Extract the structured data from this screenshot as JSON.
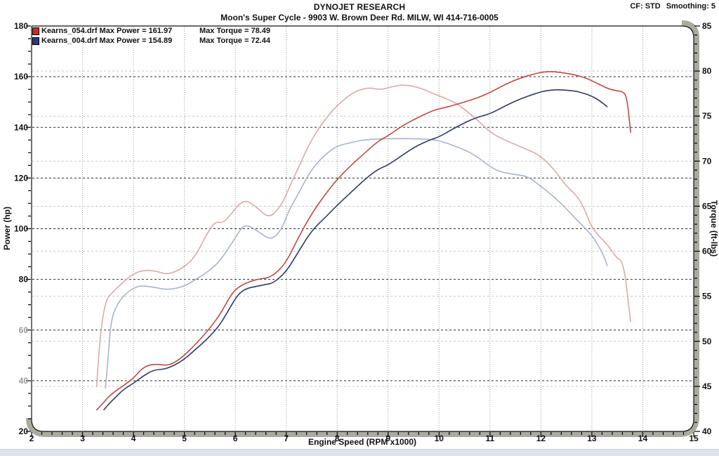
{
  "header": {
    "title": "DYNOJET RESEARCH",
    "subtitle": "Moon's Super Cycle - 9903 W. Brown Deer Rd. MILW, WI 414-716-0005",
    "cf_label": "CF: STD",
    "smoothing_label": "Smoothing: 5"
  },
  "legend": [
    {
      "file": "Kearns_054.drf",
      "power_label": " Max Power = 161.97",
      "torque_label": "Max Torque = 78.49",
      "swatch": "#cc2a26"
    },
    {
      "file": "Kearns_004.drf",
      "power_label": " Max Power = 154.89",
      "torque_label": "Max Torque = 72.44",
      "swatch": "#2c3a80"
    }
  ],
  "colors": {
    "power_grid": "#2b2b2b",
    "torque_grid": "#c9c9c9",
    "vline": "#9a9a9a",
    "frame_gray": "#aaaa9e",
    "axis_black": "#111111",
    "label": "#111111",
    "faded_label": "#9a9a9a",
    "red_power": "#bf4a43",
    "blue_power": "#303a62",
    "red_torque": "#dcaaa7",
    "blue_torque": "#aab3c9"
  },
  "chart_data": {
    "type": "line",
    "title": "DYNOJET RESEARCH",
    "xlabel": "Engine Speed (RPM x1000)",
    "ylabel_left": "Power (hp)",
    "ylabel_right": "Torque (ft-lbs)",
    "grid": true,
    "legend_position": "top-left",
    "x": {
      "min": 2,
      "max": 15,
      "major": 1,
      "minor": 0.2
    },
    "y_power": {
      "min": 20,
      "max": 180,
      "major": 20,
      "minor": 5,
      "grid_from": 40,
      "grid_to": 160,
      "faded_labels": [
        40,
        60
      ]
    },
    "y_torque": {
      "min": 40,
      "max": 85,
      "major": 5,
      "minor": 1,
      "grid_from": 45,
      "grid_to": 80
    },
    "series": [
      {
        "name": "Kearns_054.drf Power",
        "axis": "power",
        "color_key": "red_power",
        "max": 161.97,
        "points": [
          [
            3.28,
            28.5
          ],
          [
            3.4,
            31
          ],
          [
            3.5,
            33.5
          ],
          [
            3.65,
            36
          ],
          [
            3.8,
            38
          ],
          [
            4.0,
            41
          ],
          [
            4.15,
            44.5
          ],
          [
            4.3,
            46.3
          ],
          [
            4.5,
            46.5
          ],
          [
            4.65,
            46
          ],
          [
            4.8,
            47
          ],
          [
            5.0,
            50
          ],
          [
            5.2,
            54
          ],
          [
            5.45,
            59.5
          ],
          [
            5.7,
            66
          ],
          [
            5.93,
            74.6
          ],
          [
            6.1,
            77.5
          ],
          [
            6.3,
            79.3
          ],
          [
            6.5,
            80.3
          ],
          [
            6.65,
            80.6
          ],
          [
            6.8,
            82.5
          ],
          [
            7.0,
            86.8
          ],
          [
            7.25,
            97
          ],
          [
            7.5,
            106
          ],
          [
            7.8,
            114.5
          ],
          [
            8.0,
            119.5
          ],
          [
            8.3,
            125.6
          ],
          [
            8.55,
            130
          ],
          [
            8.8,
            134.5
          ],
          [
            9.0,
            136.7
          ],
          [
            9.3,
            140.9
          ],
          [
            9.55,
            143.5
          ],
          [
            9.85,
            146.4
          ],
          [
            10.0,
            147.3
          ],
          [
            10.2,
            148.2
          ],
          [
            10.5,
            150
          ],
          [
            10.75,
            151.6
          ],
          [
            11.0,
            153.7
          ],
          [
            11.3,
            157
          ],
          [
            11.6,
            159.5
          ],
          [
            11.85,
            161
          ],
          [
            12.05,
            161.9
          ],
          [
            12.25,
            162
          ],
          [
            12.45,
            161.5
          ],
          [
            12.7,
            160.6
          ],
          [
            12.9,
            159.3
          ],
          [
            13.05,
            157.9
          ],
          [
            13.2,
            156.4
          ],
          [
            13.35,
            155
          ],
          [
            13.5,
            154.4
          ],
          [
            13.62,
            154
          ],
          [
            13.68,
            152
          ],
          [
            13.72,
            146
          ],
          [
            13.76,
            138
          ]
        ]
      },
      {
        "name": "Kearns_004.drf Power",
        "axis": "power",
        "color_key": "blue_power",
        "max": 154.89,
        "points": [
          [
            3.42,
            28.5
          ],
          [
            3.5,
            30.5
          ],
          [
            3.65,
            33.5
          ],
          [
            3.8,
            36.5
          ],
          [
            4.0,
            39
          ],
          [
            4.2,
            42
          ],
          [
            4.4,
            44.3
          ],
          [
            4.6,
            44.5
          ],
          [
            4.8,
            46
          ],
          [
            5.0,
            48.5
          ],
          [
            5.2,
            52
          ],
          [
            5.45,
            56.5
          ],
          [
            5.7,
            62
          ],
          [
            5.9,
            69
          ],
          [
            6.05,
            74
          ],
          [
            6.2,
            76.3
          ],
          [
            6.4,
            77.2
          ],
          [
            6.6,
            78
          ],
          [
            6.75,
            78.6
          ],
          [
            7.0,
            83
          ],
          [
            7.25,
            91.3
          ],
          [
            7.5,
            99.3
          ],
          [
            7.8,
            105.1
          ],
          [
            8.0,
            109.3
          ],
          [
            8.3,
            114.9
          ],
          [
            8.55,
            119.6
          ],
          [
            8.8,
            123.5
          ],
          [
            9.0,
            125.1
          ],
          [
            9.3,
            129.3
          ],
          [
            9.55,
            132.6
          ],
          [
            9.85,
            135.3
          ],
          [
            10.0,
            136.2
          ],
          [
            10.35,
            140.3
          ],
          [
            10.7,
            143.7
          ],
          [
            11.0,
            145.3
          ],
          [
            11.3,
            148.5
          ],
          [
            11.6,
            151.3
          ],
          [
            11.9,
            153.4
          ],
          [
            12.1,
            154.5
          ],
          [
            12.3,
            154.89
          ],
          [
            12.5,
            154.7
          ],
          [
            12.7,
            154.2
          ],
          [
            12.85,
            153.4
          ],
          [
            13.0,
            152.3
          ],
          [
            13.15,
            150.6
          ],
          [
            13.3,
            148.2
          ]
        ]
      },
      {
        "name": "Kearns_054.drf Torque",
        "axis": "torque",
        "color_key": "red_torque",
        "max": 78.49,
        "points": [
          [
            3.28,
            45
          ],
          [
            3.33,
            50
          ],
          [
            3.45,
            54.6
          ],
          [
            3.6,
            55.5
          ],
          [
            3.8,
            56.6
          ],
          [
            4.0,
            57.5
          ],
          [
            4.2,
            57.9
          ],
          [
            4.45,
            57.8
          ],
          [
            4.65,
            57.4
          ],
          [
            4.85,
            57.8
          ],
          [
            5.0,
            58.3
          ],
          [
            5.2,
            59.3
          ],
          [
            5.45,
            62
          ],
          [
            5.6,
            63.3
          ],
          [
            5.75,
            63.1
          ],
          [
            5.9,
            64
          ],
          [
            6.16,
            65.8
          ],
          [
            6.4,
            65
          ],
          [
            6.66,
            63.6
          ],
          [
            6.9,
            65
          ],
          [
            7.1,
            67.6
          ],
          [
            7.25,
            69.4
          ],
          [
            7.5,
            72.5
          ],
          [
            7.8,
            74.9
          ],
          [
            8.0,
            76.2
          ],
          [
            8.3,
            77.6
          ],
          [
            8.6,
            78.2
          ],
          [
            8.85,
            77.9
          ],
          [
            9.1,
            78.3
          ],
          [
            9.3,
            78.49
          ],
          [
            9.6,
            78.2
          ],
          [
            9.93,
            77.4
          ],
          [
            10.2,
            76.8
          ],
          [
            10.4,
            76.2
          ],
          [
            10.75,
            74.6
          ],
          [
            11.0,
            73.2
          ],
          [
            11.3,
            72.3
          ],
          [
            11.65,
            71.5
          ],
          [
            12.0,
            70.6
          ],
          [
            12.3,
            68.8
          ],
          [
            12.5,
            67.2
          ],
          [
            12.7,
            66.2
          ],
          [
            12.85,
            64.8
          ],
          [
            13.0,
            62.5
          ],
          [
            13.3,
            60.8
          ],
          [
            13.48,
            59.3
          ],
          [
            13.58,
            59
          ],
          [
            13.65,
            57.5
          ],
          [
            13.7,
            55.1
          ],
          [
            13.76,
            52.2
          ]
        ]
      },
      {
        "name": "Kearns_004.drf Torque",
        "axis": "torque",
        "color_key": "blue_torque",
        "max": 72.44,
        "points": [
          [
            3.45,
            44.8
          ],
          [
            3.5,
            48
          ],
          [
            3.56,
            52.5
          ],
          [
            3.7,
            54.3
          ],
          [
            3.85,
            55.3
          ],
          [
            4.0,
            55.9
          ],
          [
            4.15,
            56.2
          ],
          [
            4.4,
            56
          ],
          [
            4.69,
            55.7
          ],
          [
            5.0,
            56.1
          ],
          [
            5.2,
            56.8
          ],
          [
            5.41,
            57.5
          ],
          [
            5.69,
            58.8
          ],
          [
            6.0,
            61.5
          ],
          [
            6.18,
            63.1
          ],
          [
            6.45,
            62.2
          ],
          [
            6.7,
            61.2
          ],
          [
            6.9,
            62.3
          ],
          [
            7.05,
            64.5
          ],
          [
            7.2,
            66
          ],
          [
            7.5,
            69.2
          ],
          [
            7.8,
            70.9
          ],
          [
            8.0,
            71.7
          ],
          [
            8.3,
            72.1
          ],
          [
            8.55,
            72.4
          ],
          [
            9.0,
            72.5
          ],
          [
            9.5,
            72.5
          ],
          [
            9.9,
            72.4
          ],
          [
            10.1,
            72.1
          ],
          [
            10.4,
            71.5
          ],
          [
            10.7,
            70.7
          ],
          [
            11.0,
            69.4
          ],
          [
            11.2,
            68.8
          ],
          [
            11.5,
            68.5
          ],
          [
            11.75,
            68.3
          ],
          [
            12.0,
            67.2
          ],
          [
            12.2,
            66.3
          ],
          [
            12.4,
            65.3
          ],
          [
            12.7,
            63.5
          ],
          [
            13.0,
            61.8
          ],
          [
            13.15,
            60.4
          ],
          [
            13.25,
            59.3
          ],
          [
            13.3,
            58.4
          ]
        ]
      }
    ]
  }
}
